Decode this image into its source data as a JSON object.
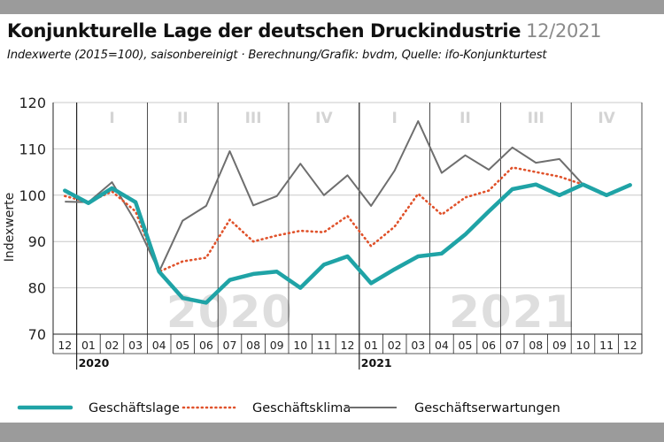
{
  "header": {
    "title": "Konjunkturelle Lage der deutschen Druckindustrie",
    "date": "12/2021",
    "subtitle": "Indexwerte (2015=100), saisonbereinigt · Berechnung/Grafik: bvdm, Quelle: ifo-Konjunkturtest"
  },
  "chart_data": {
    "type": "line",
    "ylabel": "Indexwerte",
    "ylim": [
      70,
      120
    ],
    "yticks": [
      70,
      80,
      90,
      100,
      110,
      120
    ],
    "grid": "horizontal",
    "legend_position": "bottom",
    "categories": [
      "12",
      "01",
      "02",
      "03",
      "04",
      "05",
      "06",
      "07",
      "08",
      "09",
      "10",
      "11",
      "12",
      "01",
      "02",
      "03",
      "04",
      "05",
      "06",
      "07",
      "08",
      "09",
      "10",
      "11",
      "12"
    ],
    "year_labels": [
      {
        "label": "2020",
        "at_index": 1
      },
      {
        "label": "2021",
        "at_index": 13
      }
    ],
    "quarters": [
      {
        "label": "I",
        "from": 1,
        "to": 3
      },
      {
        "label": "II",
        "from": 4,
        "to": 6
      },
      {
        "label": "III",
        "from": 7,
        "to": 9
      },
      {
        "label": "IV",
        "from": 10,
        "to": 12
      },
      {
        "label": "I",
        "from": 13,
        "to": 15
      },
      {
        "label": "II",
        "from": 16,
        "to": 18
      },
      {
        "label": "III",
        "from": 19,
        "to": 21
      },
      {
        "label": "IV",
        "from": 22,
        "to": 24
      }
    ],
    "watermarks": [
      {
        "label": "2020",
        "from": 4,
        "to": 10
      },
      {
        "label": "2021",
        "from": 16,
        "to": 22
      }
    ],
    "series": [
      {
        "name": "Geschäftslage",
        "color": "#1fa3a6",
        "style": "solid-thick",
        "values": [
          101,
          98.3,
          101.5,
          98.5,
          83.5,
          77.8,
          76.8,
          81.7,
          83,
          83.5,
          80,
          85,
          86.8,
          81,
          84,
          86.8,
          87.4,
          91.5,
          96.5,
          101.3,
          102.3,
          100,
          102.3,
          100,
          102.2
        ]
      },
      {
        "name": "Geschäftsklima",
        "color": "#e0522b",
        "style": "dotted",
        "values": [
          99.8,
          98.5,
          100.8,
          96.5,
          83.5,
          85.7,
          86.5,
          94.7,
          90,
          91.3,
          92.3,
          92,
          95.5,
          89,
          93.2,
          100.3,
          95.8,
          99.5,
          101,
          106,
          105,
          104,
          102.3,
          100,
          102.2
        ]
      },
      {
        "name": "Geschäftserwartungen",
        "color": "#6e6e6e",
        "style": "solid-thin",
        "values": [
          98.6,
          98.5,
          102.8,
          94.3,
          83.5,
          94.5,
          97.7,
          109.5,
          97.8,
          99.8,
          106.8,
          100,
          104.3,
          97.7,
          105.3,
          116,
          104.8,
          108.6,
          105.5,
          110.3,
          107,
          107.8,
          102.3,
          100,
          102.2
        ]
      }
    ]
  }
}
